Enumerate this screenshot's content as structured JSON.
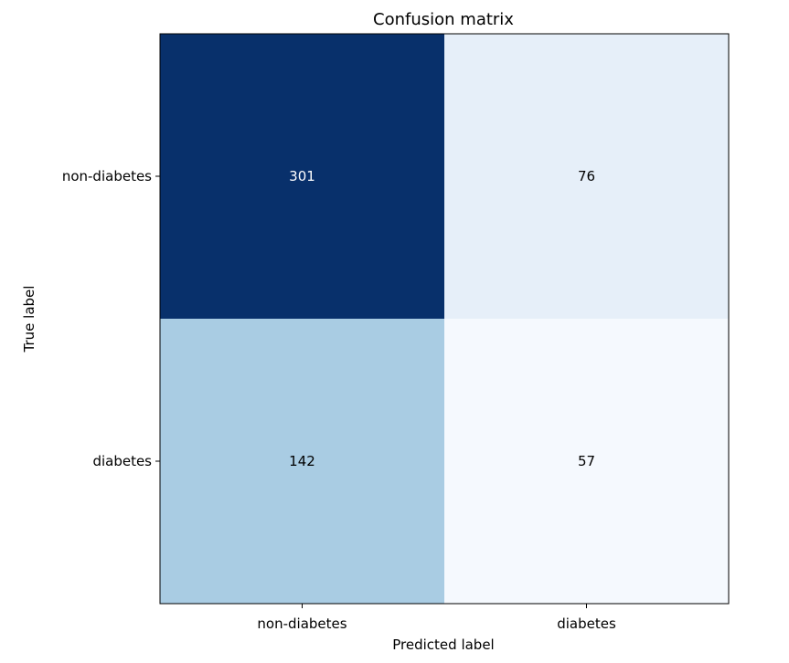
{
  "chart_data": {
    "type": "heatmap",
    "title": "Confusion matrix",
    "xlabel": "Predicted label",
    "ylabel": "True label",
    "x_categories": [
      "non-diabetes",
      "diabetes"
    ],
    "y_categories": [
      "non-diabetes",
      "diabetes"
    ],
    "values": [
      [
        301,
        76
      ],
      [
        142,
        57
      ]
    ],
    "colormap": "Blues",
    "cell_colors": [
      [
        "#08306b",
        "#e6eff9"
      ],
      [
        "#a9cce3",
        "#f5f9fe"
      ]
    ],
    "text_colors": [
      [
        "#ffffff",
        "#000000"
      ],
      [
        "#000000",
        "#000000"
      ]
    ],
    "frame_color": "#000000"
  }
}
